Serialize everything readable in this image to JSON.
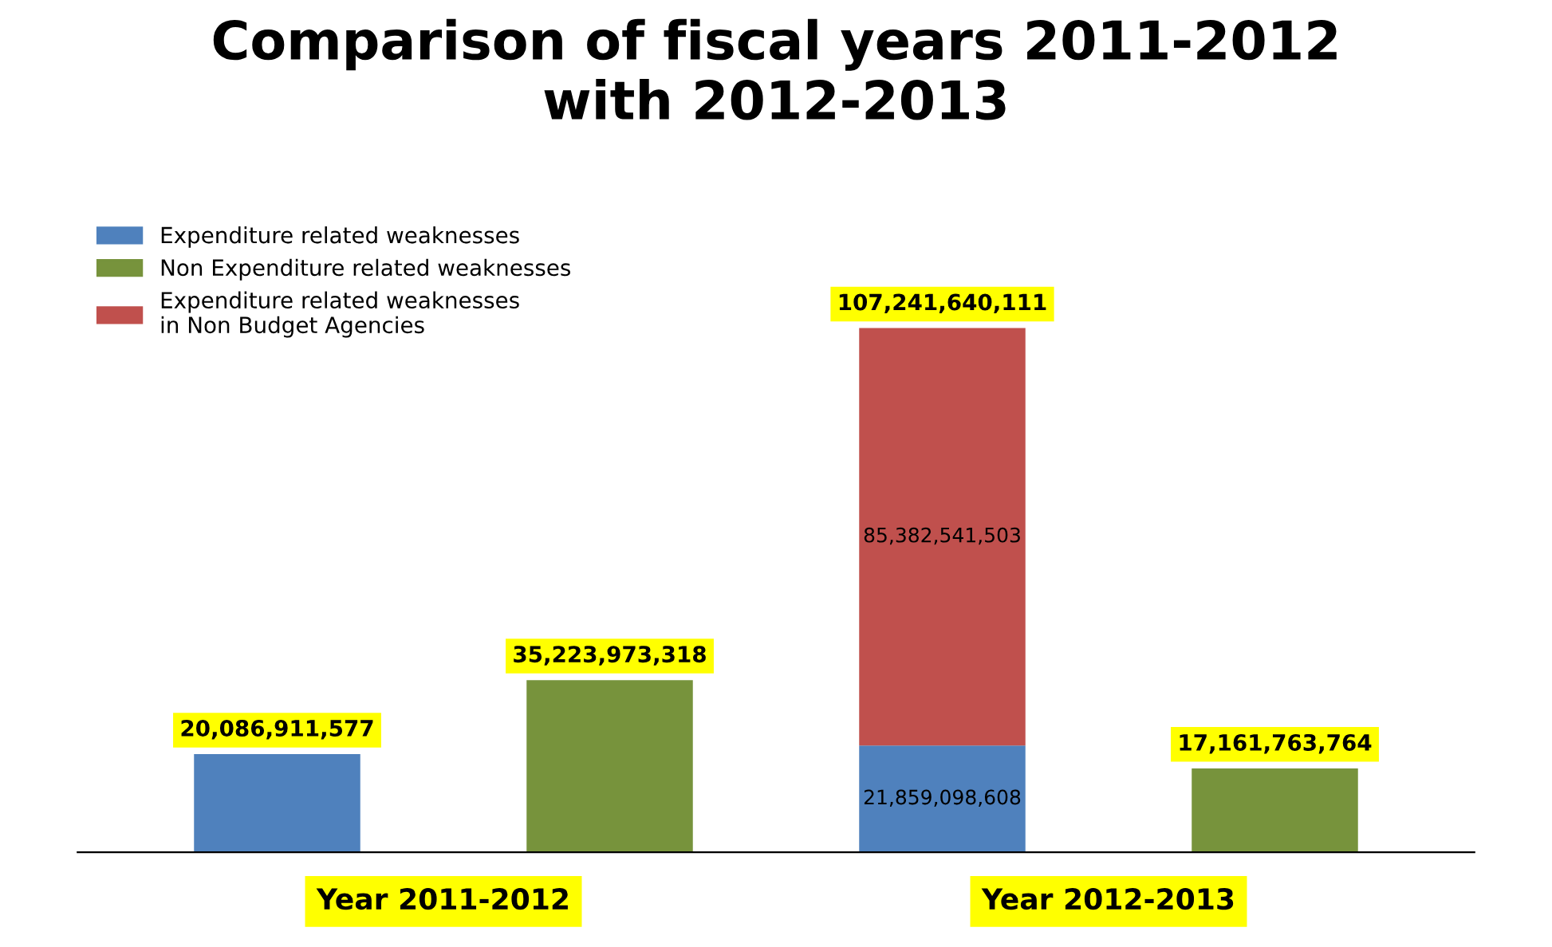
{
  "chart_data": {
    "type": "bar",
    "title": "Comparison of fiscal years 2011-2012\nwith 2012-2013",
    "categories": [
      "Year 2011-2012",
      null,
      "Year 2012-2013",
      null
    ],
    "stacked": true,
    "series": [
      {
        "name": "Expenditure related weaknesses",
        "color": "#4f81bd",
        "values": [
          20086911577,
          null,
          21859098608,
          null
        ],
        "value_labels": [
          "20,086,911,577",
          null,
          "21,859,098,608",
          null
        ]
      },
      {
        "name": "Non Expenditure related weaknesses",
        "color": "#77933c",
        "values": [
          null,
          35223973318,
          null,
          17161763764
        ],
        "value_labels": [
          null,
          "35,223,973,318",
          null,
          "17,161,763,764"
        ]
      },
      {
        "name": "Expenditure related weaknesses\nin Non Budget Agencies",
        "color": "#c0504d",
        "values": [
          null,
          null,
          85382541503,
          null
        ],
        "value_labels": [
          null,
          null,
          "85,382,541,503",
          null
        ]
      }
    ],
    "totals": [
      null,
      null,
      "107,241,640,111",
      null
    ],
    "legend": "top left"
  }
}
